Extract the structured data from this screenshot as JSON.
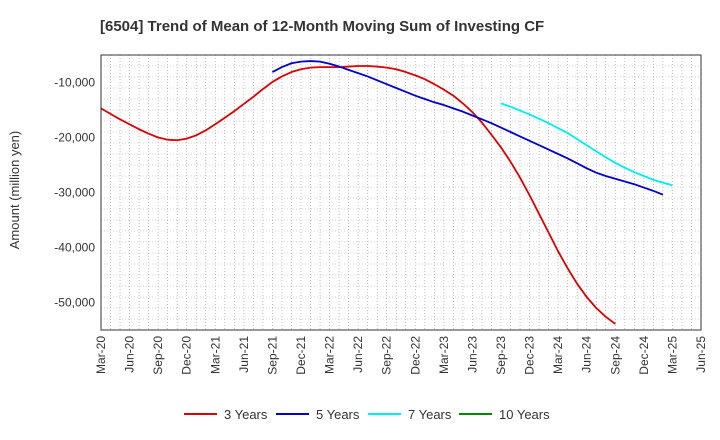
{
  "chart_data": {
    "type": "line",
    "title": "[6504]  Trend of Mean of 12-Month Moving Sum of Investing CF",
    "xlabel": "",
    "ylabel": "Amount (million yen)",
    "ylim": [
      -55000,
      -5000
    ],
    "yticks": [
      -10000,
      -20000,
      -30000,
      -40000,
      -50000
    ],
    "ytick_labels": [
      "-10,000",
      "-20,000",
      "-30,000",
      "-40,000",
      "-50,000"
    ],
    "x_tick_labels": [
      "Mar-20",
      "Jun-20",
      "Sep-20",
      "Dec-20",
      "Mar-21",
      "Jun-21",
      "Sep-21",
      "Dec-21",
      "Mar-22",
      "Jun-22",
      "Sep-22",
      "Dec-22",
      "Mar-23",
      "Jun-23",
      "Sep-23",
      "Dec-23",
      "Mar-24",
      "Jun-24",
      "Sep-24",
      "Dec-24",
      "Mar-25",
      "Jun-25"
    ],
    "grid": true,
    "legend_position": "bottom",
    "series": [
      {
        "name": "3 Years",
        "color": "#dd0000",
        "start_index": 0,
        "values": [
          -14700,
          -15700,
          -16700,
          -17600,
          -18500,
          -19300,
          -20000,
          -20400,
          -20500,
          -20200,
          -19600,
          -18700,
          -17600,
          -16400,
          -15200,
          -13900,
          -12600,
          -11200,
          -9900,
          -8900,
          -8100,
          -7600,
          -7300,
          -7200,
          -7200,
          -7200,
          -7100,
          -7000,
          -7000,
          -7100,
          -7300,
          -7600,
          -8100,
          -8700,
          -9400,
          -10300,
          -11300,
          -12400,
          -13800,
          -15400,
          -17300,
          -19500,
          -21800,
          -24400,
          -27300,
          -30500,
          -33900,
          -37300,
          -40700,
          -43800,
          -46600,
          -49000,
          -51000,
          -52600,
          -53900
        ]
      },
      {
        "name": "5 Years",
        "color": "#0000cc",
        "start_index": 18,
        "values": [
          -8100,
          -7200,
          -6500,
          -6200,
          -6100,
          -6200,
          -6600,
          -7100,
          -7700,
          -8300,
          -8900,
          -9600,
          -10300,
          -11000,
          -11700,
          -12400,
          -13000,
          -13600,
          -14100,
          -14700,
          -15300,
          -16000,
          -16700,
          -17400,
          -18200,
          -19000,
          -19800,
          -20600,
          -21400,
          -22200,
          -23000,
          -23800,
          -24700,
          -25600,
          -26400,
          -27000,
          -27500,
          -28000,
          -28500,
          -29100,
          -29700,
          -30400
        ]
      },
      {
        "name": "7 Years",
        "color": "#00eeee",
        "start_index": 42,
        "values": [
          -13800,
          -14400,
          -15100,
          -15800,
          -16600,
          -17400,
          -18300,
          -19200,
          -20300,
          -21400,
          -22500,
          -23600,
          -24600,
          -25500,
          -26300,
          -27000,
          -27700,
          -28200,
          -28700
        ]
      },
      {
        "name": "10 Years",
        "color": "#008800",
        "start_index": 0,
        "values": []
      }
    ]
  }
}
